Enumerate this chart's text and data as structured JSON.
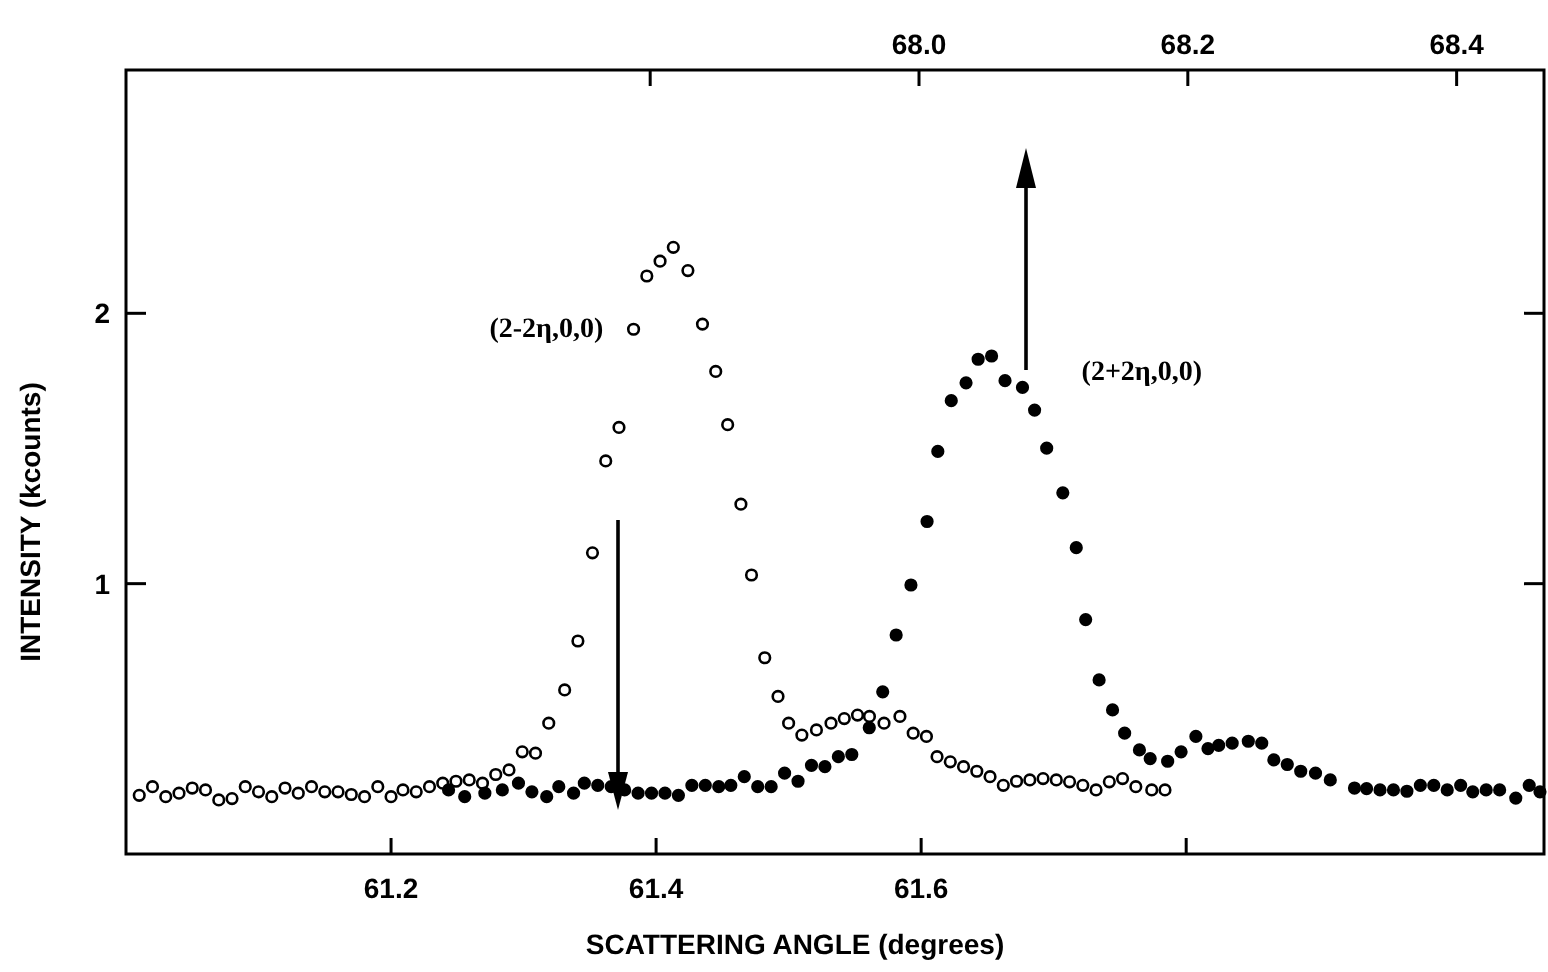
{
  "chart_data": {
    "type": "scatter",
    "xlabel": "SCATTERING ANGLE (degrees)",
    "ylabel": "INTENSITY (kcounts)",
    "xlim": [
      61.0,
      62.07
    ],
    "xticks": [
      61.2,
      61.4,
      61.6,
      {
        "value": 61.8,
        "label": null
      }
    ],
    "x2lim": [
      67.41,
      68.465
    ],
    "x2ticks": [
      {
        "value": 67.8,
        "label": null
      },
      {
        "value": 68.0,
        "label": "68.0"
      },
      68.2,
      68.4
    ],
    "ylim": [
      0,
      2.9
    ],
    "yticks": [
      1,
      2
    ],
    "grid": false,
    "marker": "circle",
    "annotations": [
      "(2-2η,0,0)",
      "(2+2η,0,0)"
    ],
    "series": [
      {
        "color": "#000000",
        "x": [
          61.01,
          61.02,
          61.03,
          61.04,
          61.05,
          61.06,
          61.07,
          61.08,
          61.09,
          61.1,
          61.11,
          61.12,
          61.13,
          61.14,
          61.15,
          61.16,
          61.17,
          61.18,
          61.19,
          61.2,
          61.209,
          61.219,
          61.229,
          61.239,
          61.249,
          61.259,
          61.269,
          61.279,
          61.289,
          61.299,
          61.309,
          61.319,
          61.331,
          61.341,
          61.352,
          61.362,
          61.372,
          61.383,
          61.393,
          61.403,
          61.413,
          61.424,
          61.435,
          61.445,
          61.454,
          61.464,
          61.472,
          61.482,
          61.492,
          61.5,
          61.51,
          61.521,
          61.532,
          61.542,
          61.552,
          61.561,
          61.572,
          61.584,
          61.594,
          61.604,
          61.612,
          61.622,
          61.632,
          61.642,
          61.652,
          61.662,
          61.672,
          61.682,
          61.692,
          61.702,
          61.712,
          61.722,
          61.732,
          61.742,
          61.752,
          61.762,
          61.774,
          61.784
        ],
        "values": [
          0.217,
          0.249,
          0.212,
          0.225,
          0.244,
          0.237,
          0.2,
          0.205,
          0.249,
          0.23,
          0.212,
          0.244,
          0.225,
          0.249,
          0.23,
          0.23,
          0.22,
          0.212,
          0.249,
          0.212,
          0.237,
          0.23,
          0.249,
          0.262,
          0.269,
          0.274,
          0.262,
          0.294,
          0.311,
          0.378,
          0.373,
          0.484,
          0.607,
          0.788,
          1.114,
          1.454,
          1.578,
          1.941,
          2.138,
          2.193,
          2.244,
          2.158,
          1.96,
          1.785,
          1.588,
          1.294,
          1.032,
          0.726,
          0.583,
          0.484,
          0.44,
          0.459,
          0.484,
          0.501,
          0.514,
          0.509,
          0.484,
          0.509,
          0.447,
          0.435,
          0.36,
          0.341,
          0.323,
          0.306,
          0.286,
          0.254,
          0.269,
          0.274,
          0.279,
          0.274,
          0.267,
          0.254,
          0.237,
          0.267,
          0.279,
          0.249,
          0.237,
          0.237
        ]
      },
      {
        "color": "#000000",
        "axis": "x2",
        "x": [
          67.65,
          67.662,
          67.677,
          67.69,
          67.702,
          67.712,
          67.723,
          67.732,
          67.743,
          67.751,
          67.761,
          67.771,
          67.781,
          67.791,
          67.801,
          67.811,
          67.821,
          67.831,
          67.841,
          67.851,
          67.86,
          67.87,
          67.88,
          67.89,
          67.9,
          67.91,
          67.92,
          67.93,
          67.94,
          67.95,
          67.963,
          67.973,
          67.983,
          67.994,
          68.006,
          68.014,
          68.024,
          68.035,
          68.044,
          68.054,
          68.064,
          68.077,
          68.086,
          68.095,
          68.107,
          68.117,
          68.124,
          68.134,
          68.144,
          68.153,
          68.164,
          68.172,
          68.185,
          68.195,
          68.206,
          68.215,
          68.223,
          68.233,
          68.245,
          68.255,
          68.264,
          68.274,
          68.284,
          68.295,
          68.306,
          68.324,
          68.333,
          68.343,
          68.353,
          68.363,
          68.373,
          68.383,
          68.393,
          68.403,
          68.412,
          68.422,
          68.432,
          68.444,
          68.454,
          68.462
        ],
        "values": [
          0.237,
          0.212,
          0.225,
          0.237,
          0.262,
          0.23,
          0.212,
          0.249,
          0.225,
          0.262,
          0.254,
          0.249,
          0.237,
          0.225,
          0.225,
          0.225,
          0.217,
          0.254,
          0.254,
          0.249,
          0.254,
          0.286,
          0.249,
          0.249,
          0.299,
          0.269,
          0.328,
          0.323,
          0.36,
          0.368,
          0.467,
          0.6,
          0.81,
          0.995,
          1.23,
          1.489,
          1.677,
          1.743,
          1.83,
          1.842,
          1.751,
          1.726,
          1.642,
          1.501,
          1.336,
          1.133,
          0.867,
          0.644,
          0.533,
          0.447,
          0.385,
          0.353,
          0.343,
          0.378,
          0.435,
          0.39,
          0.402,
          0.41,
          0.417,
          0.41,
          0.348,
          0.331,
          0.306,
          0.299,
          0.274,
          0.244,
          0.242,
          0.237,
          0.237,
          0.232,
          0.254,
          0.254,
          0.237,
          0.254,
          0.23,
          0.237,
          0.237,
          0.207,
          0.254,
          0.23
        ]
      }
    ]
  }
}
